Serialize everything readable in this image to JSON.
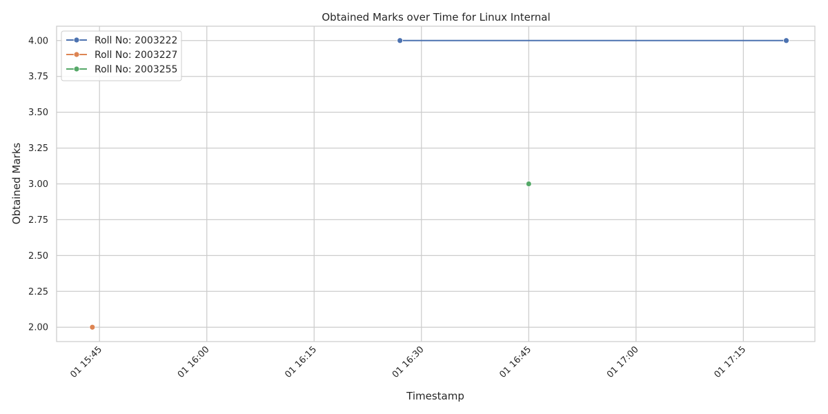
{
  "chart_data": {
    "type": "line",
    "title": "Obtained Marks over Time for Linux Internal",
    "xlabel": "Timestamp",
    "ylabel": "Obtained Marks",
    "x_axis": {
      "kind": "time",
      "range": [
        "15:39",
        "17:25"
      ],
      "ticks": [
        {
          "time": "15:45",
          "label": "01 15:45"
        },
        {
          "time": "16:00",
          "label": "01 16:00"
        },
        {
          "time": "16:15",
          "label": "01 16:15"
        },
        {
          "time": "16:30",
          "label": "01 16:30"
        },
        {
          "time": "16:45",
          "label": "01 16:45"
        },
        {
          "time": "17:00",
          "label": "01 17:00"
        },
        {
          "time": "17:15",
          "label": "01 17:15"
        }
      ]
    },
    "ylim": [
      1.9,
      4.1
    ],
    "yticks": [
      "2.00",
      "2.25",
      "2.50",
      "2.75",
      "3.00",
      "3.25",
      "3.50",
      "3.75",
      "4.00"
    ],
    "grid": true,
    "legend": "top-left",
    "series": [
      {
        "name": "Roll No: 2003222",
        "color": "#4c72b0",
        "points": [
          {
            "x": "16:27",
            "y": 4.0
          },
          {
            "x": "17:21",
            "y": 4.0
          }
        ]
      },
      {
        "name": "Roll No: 2003227",
        "color": "#dd8452",
        "points": [
          {
            "x": "15:44",
            "y": 2.0
          }
        ]
      },
      {
        "name": "Roll No: 2003255",
        "color": "#55a868",
        "points": [
          {
            "x": "16:45",
            "y": 3.0
          }
        ]
      }
    ]
  }
}
